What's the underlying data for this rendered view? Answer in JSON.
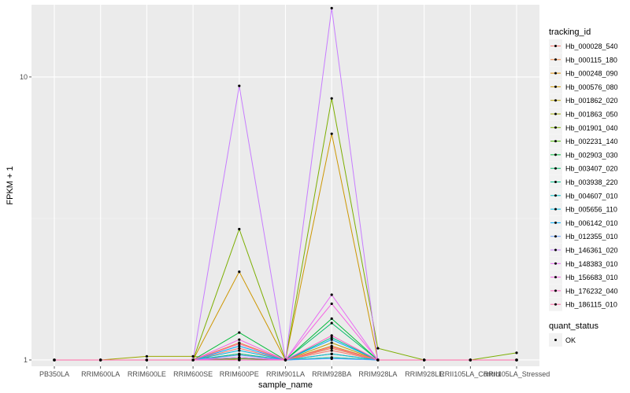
{
  "chart_data": {
    "type": "line",
    "xlabel": "sample_name",
    "ylabel": "FPKM + 1",
    "y_scale": "log10",
    "ylim": [
      0.95,
      18
    ],
    "y_ticks": [
      {
        "value": 1,
        "label": "1"
      },
      {
        "value": 10,
        "label": "10"
      }
    ],
    "grid": true,
    "categories": [
      "PB350LA",
      "RRIM600LA",
      "RRIM600LE",
      "RRIM600SE",
      "RRIM600PE",
      "RRIM901LA",
      "RRIM928BA",
      "RRIM928LA",
      "RRIM928LE",
      "RRII105LA_Control",
      "RRII105LA_Stressed"
    ],
    "legend": {
      "position": "right",
      "color_title": "tracking_id",
      "shape_title": "quant_status",
      "shape_label": "OK"
    },
    "series": [
      {
        "name": "Hb_000028_540",
        "color": "#F8766D",
        "values": [
          1,
          1,
          1,
          1,
          1.1,
          1,
          1.08,
          1,
          1,
          1,
          1
        ]
      },
      {
        "name": "Hb_000115_180",
        "color": "#ED813E",
        "values": [
          1,
          1,
          1,
          1,
          1.15,
          1,
          1.1,
          1,
          1,
          1,
          1
        ]
      },
      {
        "name": "Hb_000248_090",
        "color": "#DE8C00",
        "values": [
          1,
          1,
          1,
          1,
          1.02,
          1,
          1.12,
          1,
          1,
          1,
          1
        ]
      },
      {
        "name": "Hb_000576_080",
        "color": "#CD9600",
        "values": [
          1,
          1,
          1,
          1,
          2.05,
          1,
          6.3,
          1,
          1,
          1,
          1
        ]
      },
      {
        "name": "Hb_001862_020",
        "color": "#B79F00",
        "values": [
          1,
          1,
          1,
          1,
          1.05,
          1,
          1.15,
          1,
          1,
          1,
          1
        ]
      },
      {
        "name": "Hb_001863_050",
        "color": "#9DA700",
        "values": [
          1,
          1,
          1.03,
          1.03,
          1,
          1,
          1.05,
          1,
          1,
          1,
          1
        ]
      },
      {
        "name": "Hb_001901_040",
        "color": "#7CAE00",
        "values": [
          1,
          1,
          1,
          1,
          2.9,
          1,
          8.4,
          1.1,
          1,
          1,
          1.06
        ]
      },
      {
        "name": "Hb_002231_140",
        "color": "#49B500",
        "values": [
          1,
          1,
          1,
          1,
          1.01,
          1,
          1.02,
          1,
          1,
          1,
          1
        ]
      },
      {
        "name": "Hb_002903_030",
        "color": "#00BA38",
        "values": [
          1,
          1,
          1,
          1,
          1.25,
          1,
          1.4,
          1,
          1,
          1,
          1
        ]
      },
      {
        "name": "Hb_003407_020",
        "color": "#00BE67",
        "values": [
          1,
          1,
          1,
          1,
          1.02,
          1,
          1.35,
          1,
          1,
          1,
          1
        ]
      },
      {
        "name": "Hb_003938_220",
        "color": "#00C08B",
        "values": [
          1,
          1,
          1,
          1,
          1.05,
          1,
          1.2,
          1,
          1,
          1,
          1
        ]
      },
      {
        "name": "Hb_004607_010",
        "color": "#00BFC4",
        "values": [
          1,
          1,
          1,
          1,
          1.0,
          1,
          1.02,
          1,
          1,
          1,
          1
        ]
      },
      {
        "name": "Hb_005656_110",
        "color": "#00B9E3",
        "values": [
          1,
          1,
          1,
          1,
          1.08,
          1,
          1.05,
          1,
          1,
          1,
          1
        ]
      },
      {
        "name": "Hb_006142_010",
        "color": "#00ADFA",
        "values": [
          1,
          1,
          1,
          1,
          1.12,
          1,
          1.18,
          1,
          1,
          1,
          1
        ]
      },
      {
        "name": "Hb_012355_010",
        "color": "#619CFF",
        "values": [
          1,
          1,
          1,
          1,
          1.04,
          1,
          1.01,
          1,
          1,
          1,
          1
        ]
      },
      {
        "name": "Hb_146361_020",
        "color": "#C77CFF",
        "values": [
          1,
          1,
          1,
          1,
          9.3,
          1,
          17.5,
          1,
          1,
          1,
          1
        ]
      },
      {
        "name": "Hb_148383_010",
        "color": "#E76BF3",
        "values": [
          1,
          1,
          1,
          1,
          1.02,
          1,
          1.7,
          1,
          1,
          1,
          1
        ]
      },
      {
        "name": "Hb_156683_010",
        "color": "#F564E3",
        "values": [
          1,
          1,
          1,
          1,
          1.18,
          1,
          1.58,
          1,
          1,
          1,
          1
        ]
      },
      {
        "name": "Hb_176232_040",
        "color": "#FF61C3",
        "values": [
          1,
          1,
          1,
          1,
          1.0,
          1,
          1.22,
          1,
          1,
          1,
          1
        ]
      },
      {
        "name": "Hb_186115_010",
        "color": "#FF67A4",
        "values": [
          1,
          1,
          1,
          1,
          1.14,
          1,
          1.11,
          1,
          1,
          1,
          1
        ]
      }
    ]
  }
}
